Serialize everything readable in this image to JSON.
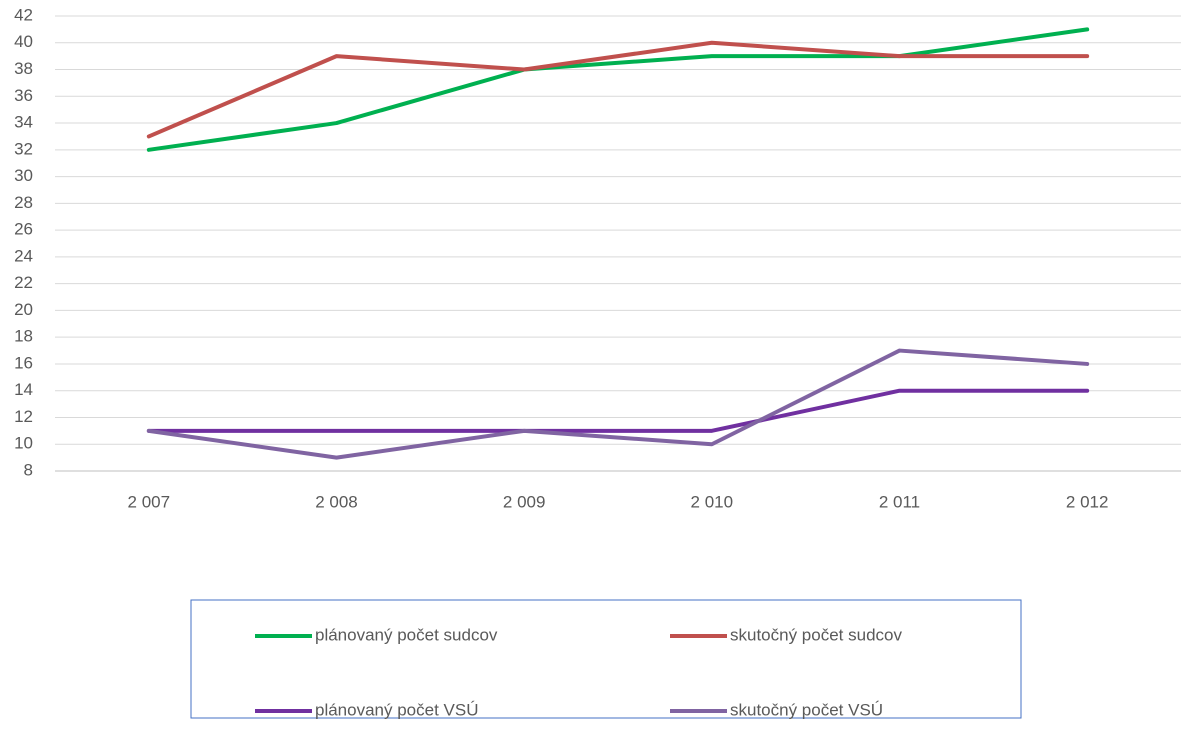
{
  "chart_data": {
    "type": "line",
    "categories": [
      "2 007",
      "2 008",
      "2 009",
      "2 010",
      "2 011",
      "2 012"
    ],
    "series": [
      {
        "name": "plánovaný počet sudcov",
        "color": "#00b050",
        "values": [
          32,
          34,
          38,
          39,
          39,
          41
        ]
      },
      {
        "name": "skutočný počet sudcov",
        "color": "#c0504d",
        "values": [
          33,
          39,
          38,
          40,
          39,
          39
        ]
      },
      {
        "name": "plánovaný počet VSÚ",
        "color": "#7030a0",
        "values": [
          11,
          11,
          11,
          11,
          14,
          14
        ]
      },
      {
        "name": "skutočný počet VSÚ",
        "color": "#8064a2",
        "values": [
          11,
          9,
          11,
          10,
          17,
          16
        ]
      }
    ],
    "ylim": [
      8,
      42
    ],
    "yticks": [
      8,
      10,
      12,
      14,
      16,
      18,
      20,
      22,
      24,
      26,
      28,
      30,
      32,
      34,
      36,
      38,
      40,
      42
    ],
    "grid": true,
    "legend": "bottom"
  }
}
